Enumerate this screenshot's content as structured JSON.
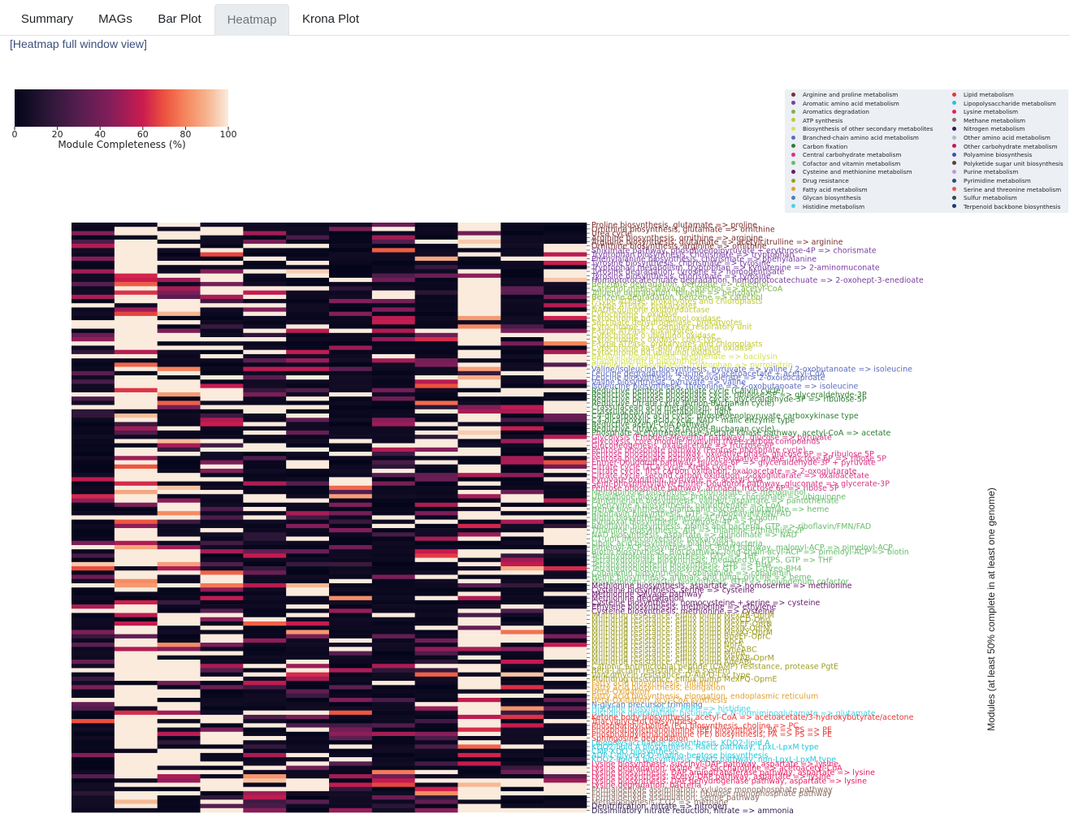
{
  "tabs": [
    {
      "label": "Summary",
      "active": false
    },
    {
      "label": "MAGs",
      "active": false
    },
    {
      "label": "Bar Plot",
      "active": false
    },
    {
      "label": "Heatmap",
      "active": true
    },
    {
      "label": "Krona Plot",
      "active": false
    }
  ],
  "full_window_link": "[Heatmap full window view]",
  "colorbar": {
    "label": "Module Completeness (%)",
    "ticks": [
      "0",
      "20",
      "40",
      "60",
      "80",
      "100"
    ],
    "min": 0,
    "max": 100
  },
  "legend": {
    "left_column": [
      {
        "label": "Arginine and proline metabolism",
        "color": "#7b2d2d"
      },
      {
        "label": "Aromatic amino acid metabolism",
        "color": "#7a3fa0"
      },
      {
        "label": "Aromatics degradation",
        "color": "#7cb342"
      },
      {
        "label": "ATP synthesis",
        "color": "#c0ca33"
      },
      {
        "label": "Biosynthesis of other secondary metabolites",
        "color": "#d4e157"
      },
      {
        "label": "Branched-chain amino acid metabolism",
        "color": "#5c6bc0"
      },
      {
        "label": "Carbon fixation",
        "color": "#2e7d32"
      },
      {
        "label": "Central carbohydrate metabolism",
        "color": "#d63384"
      },
      {
        "label": "Cofactor and vitamin metabolism",
        "color": "#66bb6a"
      },
      {
        "label": "Cysteine and methionine metabolism",
        "color": "#6a1b6a"
      },
      {
        "label": "Drug resistance",
        "color": "#9e9d24"
      },
      {
        "label": "Fatty acid metabolism",
        "color": "#e0a030"
      },
      {
        "label": "Glycan biosynthesis",
        "color": "#4a7fc1"
      },
      {
        "label": "Histidine metabolism",
        "color": "#4dd0e1"
      }
    ],
    "right_column": [
      {
        "label": "Lipid metabolism",
        "color": "#e53935"
      },
      {
        "label": "Lipopolysaccharide metabolism",
        "color": "#26c6da"
      },
      {
        "label": "Lysine metabolism",
        "color": "#e91e63"
      },
      {
        "label": "Methane metabolism",
        "color": "#8d6e63"
      },
      {
        "label": "Nitrogen metabolism",
        "color": "#311b4f"
      },
      {
        "label": "Other amino acid metabolism",
        "color": "#b0bec5"
      },
      {
        "label": "Other carbohydrate metabolism",
        "color": "#c2185b"
      },
      {
        "label": "Polyamine biosynthesis",
        "color": "#3f51b5"
      },
      {
        "label": "Polyketide sugar unit biosynthesis",
        "color": "#5d4037"
      },
      {
        "label": "Purine metabolism",
        "color": "#ce93d8"
      },
      {
        "label": "Pyrimidine metabolism",
        "color": "#2e4a7a"
      },
      {
        "label": "Serine and threonine metabolism",
        "color": "#ef5350"
      },
      {
        "label": "Sulfur metabolism",
        "color": "#37474f"
      },
      {
        "label": "Terpenoid backbone biosynthesis",
        "color": "#1e3a6e"
      }
    ]
  },
  "heatmap": {
    "y_axis_label": "Modules (at least 50% complete in at least one genome)",
    "n_columns": 12,
    "row_labels": [
      {
        "text": "Proline biosynthesis, glutamate => proline",
        "color": "#7b2d2d"
      },
      {
        "text": "Ornithine biosynthesis, glutamate => ornithine",
        "color": "#7b2d2d"
      },
      {
        "text": "Urea cycle",
        "color": "#7b2d2d"
      },
      {
        "text": "Arginine biosynthesis, ornithine => arginine",
        "color": "#7b2d2d"
      },
      {
        "text": "Arginine biosynthesis, glutamate => acetylcitrulline => arginine",
        "color": "#7b2d2d"
      },
      {
        "text": "Ornithine biosynthesis, arginine => ornithine",
        "color": "#7b2d2d"
      },
      {
        "text": "Shikimate pathway, phosphoenolpyruvate + erythrose-4P => chorismate",
        "color": "#7a3fa0"
      },
      {
        "text": "Tryptophan biosynthesis, chorismate => tryptophan",
        "color": "#7a3fa0"
      },
      {
        "text": "Phenylalanine biosynthesis, chorismate => phenylalanine",
        "color": "#7a3fa0"
      },
      {
        "text": "Tyrosine biosynthesis, chorismate => tyrosine",
        "color": "#7a3fa0"
      },
      {
        "text": "Tryptophan metabolism, tryptophan => kynurenine => 2-aminomuconate",
        "color": "#7a3fa0"
      },
      {
        "text": "Tyrosine degradation, tyrosine => homogentisate",
        "color": "#7a3fa0"
      },
      {
        "text": "Tyrosine biosynthesis, chorismate => tyrosine",
        "color": "#7a3fa0"
      },
      {
        "text": "Homoprotocatechuate degradation, homoprotocatechuate => 2-oxohept-3-enedioate",
        "color": "#7a3fa0"
      },
      {
        "text": "Benzoate degradation, benzoate => catechol",
        "color": "#7cb342"
      },
      {
        "text": "Catechol meta-cleavage, catechol => acetyl-CoA",
        "color": "#7cb342"
      },
      {
        "text": "Toluene degradation, toluene => benzoate",
        "color": "#7cb342"
      },
      {
        "text": "Benzene degradation, benzene => catechol",
        "color": "#7cb342"
      },
      {
        "text": "F-type ATPase, prokaryotes and chloroplasts",
        "color": "#c0ca33"
      },
      {
        "text": "V-type ATPase, prokaryotes",
        "color": "#c0ca33"
      },
      {
        "text": "NADH:quinone oxidoreductase",
        "color": "#c0ca33"
      },
      {
        "text": "Cytochrome c oxidase",
        "color": "#c0ca33"
      },
      {
        "text": "Cytochrome bd ubiquinol oxidase",
        "color": "#c0ca33"
      },
      {
        "text": "Succinate dehydrogenase, prokaryotes",
        "color": "#c0ca33"
      },
      {
        "text": "Cytochrome bc1 complex respiratory unit",
        "color": "#c0ca33"
      },
      {
        "text": "F-type ATPase, eukaryotes",
        "color": "#c0ca33"
      },
      {
        "text": "Cytochrome o ubiquinol oxidase",
        "color": "#c0ca33"
      },
      {
        "text": "Cytochrome c oxidase, cbb3-type",
        "color": "#c0ca33"
      },
      {
        "text": "F-type ATPase, prokaryotes and chloroplasts",
        "color": "#c0ca33"
      },
      {
        "text": "Cytochrome aa3-600 menaquinol oxidase",
        "color": "#c0ca33"
      },
      {
        "text": "Cytochrome bd ubiquinol oxidase",
        "color": "#c0ca33"
      },
      {
        "text": "Bacilysin biosynthesis, prephenate => bacilysin",
        "color": "#d4e157"
      },
      {
        "text": "Staphyloferrin B biosynthesis",
        "color": "#d4e157"
      },
      {
        "text": "Pyrrolnitrin biosynthesis, tryptophan => pyrrolnitrin",
        "color": "#d4e157"
      },
      {
        "text": "Valine/isoleucine biosynthesis, pyruvate => valine / 2-oxobutanoate => isoleucine",
        "color": "#5c6bc0"
      },
      {
        "text": "Leucine degradation, leucine => acetoacetate + acetyl-CoA",
        "color": "#5c6bc0"
      },
      {
        "text": "Leucine biosynthesis, 2-oxoisovalerate => 2-oxoisocaproate",
        "color": "#5c6bc0"
      },
      {
        "text": "Valine biosynthesis, pyruvate => valine",
        "color": "#5c6bc0"
      },
      {
        "text": "Isoleucine biosynthesis, threonine => 2-oxobutanoate => isoleucine",
        "color": "#5c6bc0"
      },
      {
        "text": "Reductive pentose phosphate cycle (Calvin cycle)",
        "color": "#2e7d32"
      },
      {
        "text": "Reductive pentose phosphate cycle, ribulose-5P => glyceraldehyde-3P",
        "color": "#2e7d32"
      },
      {
        "text": "Reductive pentose phosphate cycle, glyceraldehyde-3P => ribulose-5P",
        "color": "#2e7d32"
      },
      {
        "text": "Reductive citrate cycle (Arnon-Buchanan cycle)",
        "color": "#2e7d32"
      },
      {
        "text": "Crassulacean acid metabolism, dark",
        "color": "#2e7d32"
      },
      {
        "text": "Crassulacean acid metabolism, light",
        "color": "#2e7d32"
      },
      {
        "text": "C4-dicarboxylic acid cycle, phosphoenolpyruvate carboxykinase type",
        "color": "#2e7d32"
      },
      {
        "text": "C4-dicarboxylic acid cycle, NAD - malic enzyme type",
        "color": "#2e7d32"
      },
      {
        "text": "Reductive acetyl-CoA pathway",
        "color": "#2e7d32"
      },
      {
        "text": "Reductive citrate cycle (Arnon-Buchanan cycle)",
        "color": "#2e7d32"
      },
      {
        "text": "Phosphate acetyltransferase-acetate kinase pathway, acetyl-CoA => acetate",
        "color": "#2e7d32"
      },
      {
        "text": "Glycolysis (Embden-Meyerhof pathway), glucose => pyruvate",
        "color": "#d63384"
      },
      {
        "text": "Glycolysis, core module involving three-carbon compounds",
        "color": "#d63384"
      },
      {
        "text": "Gluconeogenesis, oxaloacetate => fructose-6P",
        "color": "#d63384"
      },
      {
        "text": "Pentose phosphate pathway (Pentose phosphate cycle)",
        "color": "#d63384"
      },
      {
        "text": "Pentose phosphate pathway, oxidative phase, glucose 6P => ribulose 5P",
        "color": "#d63384"
      },
      {
        "text": "Pentose phosphate pathway, non-oxidative phase, fructose 6P => ribose 5P",
        "color": "#d63384"
      },
      {
        "text": "Entner-Doudoroff pathway, glucose-6P => glyceraldehyde-3P + pyruvate",
        "color": "#d63384"
      },
      {
        "text": "Citrate cycle (TCA cycle, Krebs cycle)",
        "color": "#d63384"
      },
      {
        "text": "Citrate cycle, first carbon oxidation, oxaloacetate => 2-oxoglutarate",
        "color": "#d63384"
      },
      {
        "text": "Citrate cycle, second carbon oxidation, 2-oxoglutarate => oxaloacetate",
        "color": "#d63384"
      },
      {
        "text": "Pyruvate oxidation, pyruvate => acetyl-CoA",
        "color": "#d63384"
      },
      {
        "text": "Semi-phosphorylative Entner-Doudoroff pathway, gluconate => glycerate-3P",
        "color": "#d63384"
      },
      {
        "text": "Pentose phosphate pathway, archaea, fructose 6P => ribose 5P",
        "color": "#d63384"
      },
      {
        "text": "Menaquinone biosynthesis, chorismate => menaquinol",
        "color": "#66bb6a"
      },
      {
        "text": "Ubiquinone biosynthesis, prokaryotes, chorismate => ubiquinone",
        "color": "#66bb6a"
      },
      {
        "text": "Pantothenate biosynthesis, valine/L-aspartate => pantothenate",
        "color": "#66bb6a"
      },
      {
        "text": "Coenzyme A biosynthesis, pantothenate => CoA",
        "color": "#66bb6a"
      },
      {
        "text": "Heme biosynthesis, plants and bacteria, glutamate => heme",
        "color": "#66bb6a"
      },
      {
        "text": "Riboflavin biosynthesis, GTP => riboflavin/FMN/FAD",
        "color": "#66bb6a"
      },
      {
        "text": "Biotin biosynthesis, pimeloyl-ACP/CoA => biotin",
        "color": "#66bb6a"
      },
      {
        "text": "Pyridoxal biosynthesis, erythrose-4P => PLP",
        "color": "#66bb6a"
      },
      {
        "text": "Riboflavin biosynthesis, plants and bacteria, GTP => riboflavin/FMN/FAD",
        "color": "#66bb6a"
      },
      {
        "text": "Thiamine biosynthesis, AIR => thiamine-P/thiamine-2P",
        "color": "#66bb6a"
      },
      {
        "text": "NAD biosynthesis, aspartate => quinolinate => NAD",
        "color": "#66bb6a"
      },
      {
        "text": "C1-unit interconversion, prokaryotes",
        "color": "#66bb6a"
      },
      {
        "text": "Lipoic acid biosynthesis, plants and bacteria",
        "color": "#66bb6a"
      },
      {
        "text": "Pimeloyl-ACP biosynthesis, BioC-BioH pathway, malonyl-ACP => pimeloyl-ACP",
        "color": "#66bb6a"
      },
      {
        "text": "Biotin biosynthesis, BioI pathway, long-chain-acyl-ACP => pimeloyl-ACP => biotin",
        "color": "#66bb6a"
      },
      {
        "text": "Tetrahydrofolate biosynthesis, GTP => THF",
        "color": "#66bb6a"
      },
      {
        "text": "Tetrahydrofolate biosynthesis, mediated by PTPS, GTP => THF",
        "color": "#66bb6a"
      },
      {
        "text": "Tetrahydrobiopterin biosynthesis, GTP => BH4",
        "color": "#66bb6a"
      },
      {
        "text": "Tetrahydrobiopterin biosynthesis, GTP => L-threo-BH4",
        "color": "#66bb6a"
      },
      {
        "text": "Cobalamin biosynthesis, cobinamide => cobalamin",
        "color": "#66bb6a"
      },
      {
        "text": "Heme biosynthesis, animals and fungi, glycine => heme",
        "color": "#66bb6a"
      },
      {
        "text": "Molybdenum cofactor biosynthesis, GTP => molybdenum cofactor",
        "color": "#66bb6a"
      },
      {
        "text": "Methionine biosynthesis, aspartate => homoserine => methionine",
        "color": "#6a1b6a"
      },
      {
        "text": "Cysteine biosynthesis, serine => cysteine",
        "color": "#6a1b6a"
      },
      {
        "text": "Methionine salvage pathway",
        "color": "#6a1b6a"
      },
      {
        "text": "Methionine degradation",
        "color": "#6a1b6a"
      },
      {
        "text": "Cysteine biosynthesis, homocysteine + serine => cysteine",
        "color": "#6a1b6a"
      },
      {
        "text": "Ethylene biosynthesis, methionine => ethylene",
        "color": "#6a1b6a"
      },
      {
        "text": "Cysteine biosynthesis, methionine => cysteine",
        "color": "#6a1b6a"
      },
      {
        "text": "Multidrug resistance, efflux pump MexAB-OprM",
        "color": "#9e9d24"
      },
      {
        "text": "Multidrug resistance, efflux pump MexCD-OprJ",
        "color": "#9e9d24"
      },
      {
        "text": "Multidrug resistance, efflux pump MexEF-OprN",
        "color": "#9e9d24"
      },
      {
        "text": "Multidrug resistance, efflux pump MexJK-OprM",
        "color": "#9e9d24"
      },
      {
        "text": "Multidrug resistance, efflux pump MexXY-OprM",
        "color": "#9e9d24"
      },
      {
        "text": "Multidrug resistance, efflux pump BpeEF-OprC",
        "color": "#9e9d24"
      },
      {
        "text": "Multidrug resistance, efflux pump AbcA",
        "color": "#9e9d24"
      },
      {
        "text": "Multidrug resistance, efflux pump NorA",
        "color": "#9e9d24"
      },
      {
        "text": "Multidrug resistance, efflux pump SmeABC",
        "color": "#9e9d24"
      },
      {
        "text": "Multidrug resistance, efflux pump MepA",
        "color": "#9e9d24"
      },
      {
        "text": "Multidrug resistance, efflux pump MexAB-OprM",
        "color": "#9e9d24"
      },
      {
        "text": "Multidrug resistance, efflux pump AdeABC",
        "color": "#9e9d24"
      },
      {
        "text": "Cationic antimicrobial peptide (CAMP) resistance, protease PgtE",
        "color": "#9e9d24"
      },
      {
        "text": "Beta-Lactam resistance, Bla system",
        "color": "#9e9d24"
      },
      {
        "text": "Vancomycin resistance, D-Ala-D-Lac type",
        "color": "#9e9d24"
      },
      {
        "text": "Multidrug resistance, efflux pump MexPQ-OpmE",
        "color": "#9e9d24"
      },
      {
        "text": "Fatty acid biosynthesis, initiation",
        "color": "#e0a030"
      },
      {
        "text": "Fatty acid biosynthesis, elongation",
        "color": "#e0a030"
      },
      {
        "text": "Beta-Oxidation",
        "color": "#e0a030"
      },
      {
        "text": "Fatty acid biosynthesis, elongation, endoplasmic reticulum",
        "color": "#e0a030"
      },
      {
        "text": "Beta-Oxidation, acyl-CoA synthesis",
        "color": "#e0a030"
      },
      {
        "text": "N-glycan precursor trimming",
        "color": "#4a7fc1"
      },
      {
        "text": "Histidine biosynthesis, PRPP => histidine",
        "color": "#4dd0e1"
      },
      {
        "text": "Histidine degradation, histidine => N-formiminoglutamate => glutamate",
        "color": "#4dd0e1"
      },
      {
        "text": "Ketone body biosynthesis, acetyl-CoA => acetoacetate/3-hydroxybutyrate/acetone",
        "color": "#e53935"
      },
      {
        "text": "Triacylglycerol biosynthesis",
        "color": "#e53935"
      },
      {
        "text": "Phosphatidylcholine (PC) biosynthesis, choline => PC",
        "color": "#e53935"
      },
      {
        "text": "Phosphatidylethanolamine (PE) biosynthesis, PA => PS => PE",
        "color": "#e53935"
      },
      {
        "text": "Phosphatidylethanolamine (PE) biosynthesis, PA => PS => PE",
        "color": "#e53935"
      },
      {
        "text": "Sphingosine degradation",
        "color": "#e53935"
      },
      {
        "text": "Lipopolysaccharide biosynthesis, KDO2-lipid A",
        "color": "#26c6da"
      },
      {
        "text": "KDO2-lipid A biosynthesis, Raetz pathway, LpxL-LpxM type",
        "color": "#26c6da"
      },
      {
        "text": "CMP-KDO biosynthesis",
        "color": "#26c6da"
      },
      {
        "text": "ADP-L-glycero-D-manno-heptose biosynthesis",
        "color": "#26c6da"
      },
      {
        "text": "KDO2-lipid A biosynthesis, Raetz pathway, non-LpxL-LpxM type",
        "color": "#26c6da"
      },
      {
        "text": "Lysine biosynthesis, succinyl-DAP pathway, aspartate => lysine",
        "color": "#e91e63"
      },
      {
        "text": "Lysine degradation, lysine => saccharopine => acetoacetyl-CoA",
        "color": "#e91e63"
      },
      {
        "text": "Lysine biosynthesis, DAP aminotransferase pathway, aspartate => lysine",
        "color": "#e91e63"
      },
      {
        "text": "Lysine biosynthesis, acetyl-DAP pathway, aspartate => lysine",
        "color": "#e91e63"
      },
      {
        "text": "Lysine biosynthesis, DAP dehydrogenase pathway, aspartate => lysine",
        "color": "#e91e63"
      },
      {
        "text": "Lysine degradation, bacteria",
        "color": "#e91e63"
      },
      {
        "text": "Formaldehyde assimilation, xylulose monophosphate pathway",
        "color": "#8d6e63"
      },
      {
        "text": "Formaldehyde assimilation, ribulose monophosphate pathway",
        "color": "#8d6e63"
      },
      {
        "text": "Formaldehyde assimilation, serine pathway",
        "color": "#8d6e63"
      },
      {
        "text": "Methanogenesis, CO2 => methane",
        "color": "#8d6e63"
      },
      {
        "text": "Denitrification, nitrate => nitrogen",
        "color": "#311b4f"
      },
      {
        "text": "Dissimilatory nitrate reduction, nitrate => ammonia",
        "color": "#311b4f"
      }
    ]
  }
}
